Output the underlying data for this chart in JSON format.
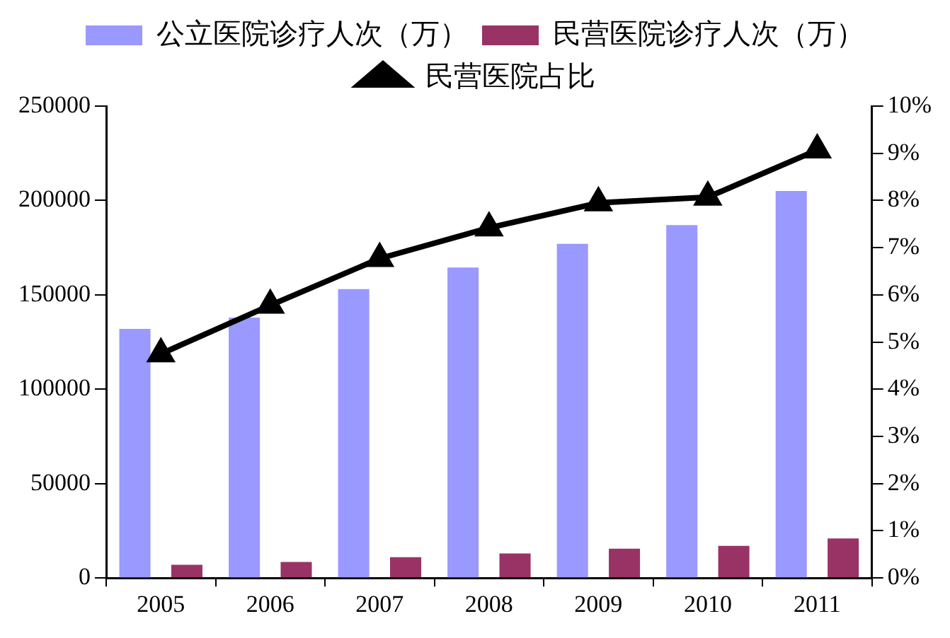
{
  "chart_data": {
    "type": "bar",
    "categories": [
      "2005",
      "2006",
      "2007",
      "2008",
      "2009",
      "2010",
      "2011"
    ],
    "series": [
      {
        "name": "公立医院诊疗人次（万）",
        "color": "#9999ff",
        "values": [
          132000,
          138000,
          153000,
          164500,
          177000,
          187000,
          205000
        ]
      },
      {
        "name": "民营医院诊疗人次（万）",
        "color": "#993366",
        "values": [
          7000,
          8500,
          11000,
          13000,
          15500,
          17000,
          21000
        ]
      },
      {
        "name": "民营医院占比",
        "type": "line",
        "axis": "y2",
        "color": "#000000",
        "values": [
          4.75,
          5.78,
          6.77,
          7.42,
          7.95,
          8.07,
          9.07
        ]
      }
    ],
    "ylim": [
      0,
      250000
    ],
    "yticks": [
      0,
      50000,
      100000,
      150000,
      200000,
      250000
    ],
    "y2lim": [
      0,
      10
    ],
    "y2ticks": [
      {
        "value": 0,
        "label": "0%"
      },
      {
        "value": 1,
        "label": "1%"
      },
      {
        "value": 2,
        "label": "2%"
      },
      {
        "value": 3,
        "label": "3%"
      },
      {
        "value": 4,
        "label": "4%"
      },
      {
        "value": 5,
        "label": "5%"
      },
      {
        "value": 6,
        "label": "6%"
      },
      {
        "value": 7,
        "label": "7%"
      },
      {
        "value": 8,
        "label": "8%"
      },
      {
        "value": 9,
        "label": "9%"
      },
      {
        "value": 10,
        "label": "10%"
      }
    ],
    "grid": false,
    "legend": "top",
    "marker": "triangle"
  }
}
